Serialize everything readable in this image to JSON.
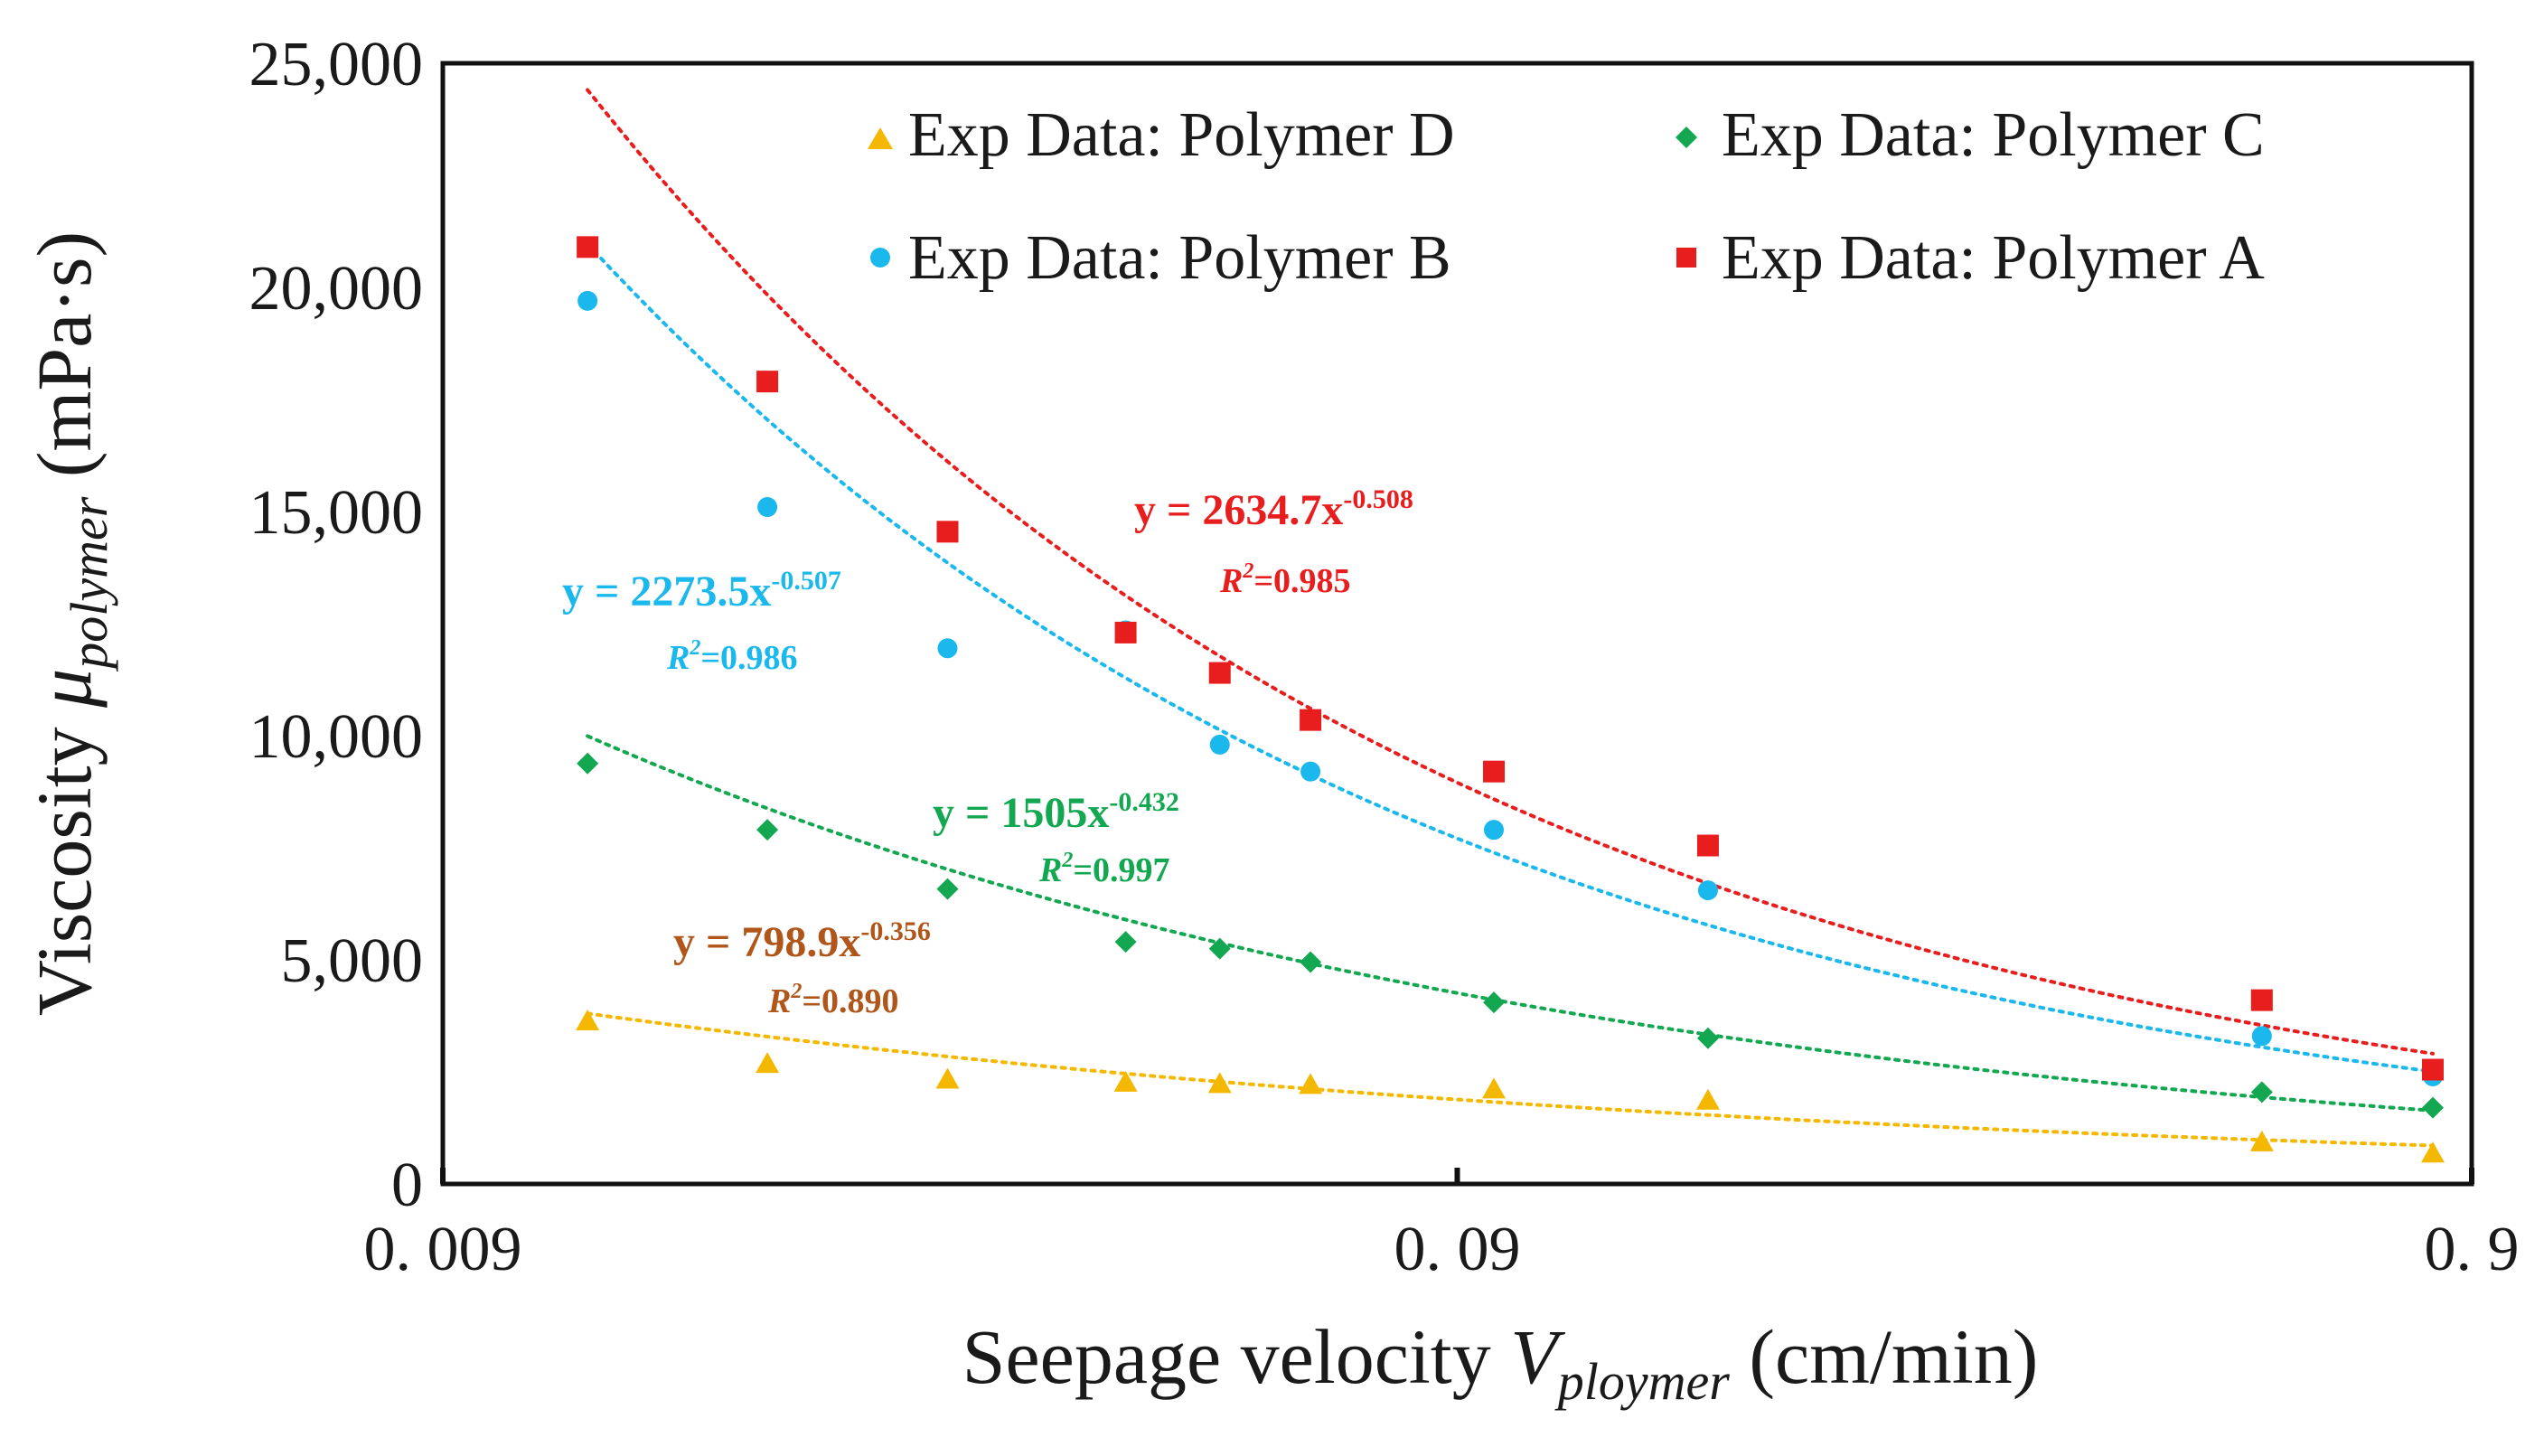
{
  "chart_data": {
    "type": "scatter",
    "title": "",
    "xlabel": {
      "prefix": "Seepage velocity",
      "symbol": "V",
      "subscript": "ploymer",
      "unit": "(cm/min)"
    },
    "ylabel": {
      "prefix": "Viscosity",
      "symbol": "μ",
      "subscript": "polymer",
      "unit": "(mPa·s)"
    },
    "xscale": "log",
    "xlim": [
      0.009,
      0.9
    ],
    "ylim": [
      0,
      25000
    ],
    "x_ticks": [
      {
        "value": 0.009,
        "label": "0. 009"
      },
      {
        "value": 0.09,
        "label": "0. 09"
      },
      {
        "value": 0.9,
        "label": "0. 9"
      }
    ],
    "y_ticks": [
      {
        "value": 0,
        "label": "0"
      },
      {
        "value": 5000,
        "label": "5,000"
      },
      {
        "value": 10000,
        "label": "10,000"
      },
      {
        "value": 15000,
        "label": "15,000"
      },
      {
        "value": 20000,
        "label": "20,000"
      },
      {
        "value": 25000,
        "label": "25,000"
      }
    ],
    "legend_position": "top-right",
    "series": [
      {
        "name": "Exp Data: Polymer D",
        "color": "#F5B800",
        "marker": "triangle",
        "x": [
          0.0125,
          0.0188,
          0.0283,
          0.0424,
          0.0525,
          0.0645,
          0.0978,
          0.159,
          0.559,
          0.824
        ],
        "y": [
          3650,
          2700,
          2350,
          2280,
          2250,
          2230,
          2130,
          1880,
          950,
          700
        ],
        "fit": {
          "a": 798.9,
          "b": -0.356,
          "equation": "y = 798.9x",
          "exponent": "-0.356",
          "r2_label": "R",
          "r2_value": "=0.890"
        }
      },
      {
        "name": "Exp Data: Polymer C",
        "color": "#12A750",
        "marker": "diamond",
        "x": [
          0.0125,
          0.0188,
          0.0283,
          0.0424,
          0.0525,
          0.0645,
          0.0978,
          0.159,
          0.559,
          0.824
        ],
        "y": [
          9380,
          7900,
          6580,
          5400,
          5250,
          4950,
          4050,
          3250,
          2050,
          1700
        ],
        "fit": {
          "a": 1505,
          "b": -0.432,
          "equation": "y = 1505x",
          "exponent": "-0.432",
          "r2_label": "R",
          "r2_value": "=0.997"
        }
      },
      {
        "name": "Exp Data: Polymer B",
        "color": "#1AB8EC",
        "marker": "circle",
        "x": [
          0.0125,
          0.0188,
          0.0283,
          0.0424,
          0.0525,
          0.0645,
          0.0978,
          0.159,
          0.559,
          0.824
        ],
        "y": [
          19700,
          15100,
          11950,
          12350,
          9800,
          9200,
          7900,
          6550,
          3300,
          2400
        ],
        "fit": {
          "a": 2273.5,
          "b": -0.507,
          "equation": "y = 2273.5x",
          "exponent": "-0.507",
          "r2_label": "R",
          "r2_value": "=0.986"
        }
      },
      {
        "name": "Exp Data: Polymer A",
        "color": "#E81E1E",
        "marker": "square",
        "x": [
          0.0125,
          0.0188,
          0.0283,
          0.0424,
          0.0525,
          0.0645,
          0.0978,
          0.159,
          0.559,
          0.824
        ],
        "y": [
          20900,
          17900,
          14550,
          12300,
          11400,
          10350,
          9200,
          7550,
          4100,
          2550
        ],
        "fit": {
          "a": 2634.7,
          "b": -0.508,
          "equation": "y = 2634.7x",
          "exponent": "-0.508",
          "r2_label": "R",
          "r2_value": "=0.985"
        }
      }
    ]
  }
}
